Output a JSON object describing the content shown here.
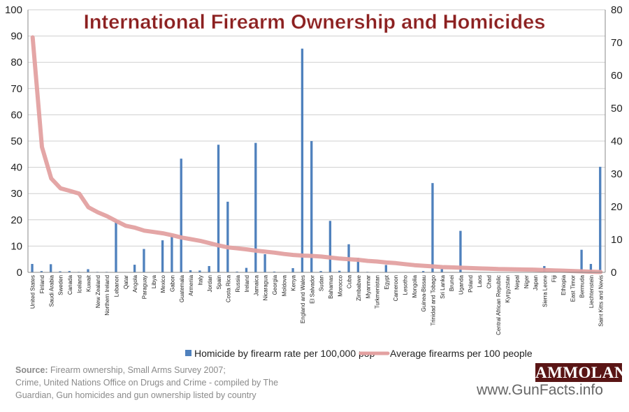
{
  "chart_data": {
    "type": "bar",
    "title": "International Firearm Ownership and Homicides",
    "left_axis": {
      "min": 0,
      "max": 100,
      "step": 10
    },
    "right_axis": {
      "min": 0,
      "max": 80,
      "step": 10
    },
    "grid": true,
    "legend": "bottom",
    "series": [
      {
        "name": "Homicide by firearm rate per 100,000 pop",
        "type": "bar",
        "axis": "left",
        "color": "#4f81bd"
      },
      {
        "name": "Average firearms per 100 people",
        "type": "line",
        "axis": "right",
        "color": "#e3a1a1"
      }
    ],
    "categories": [
      "United States",
      "Finland",
      "Saudi Arabia",
      "Sweden",
      "Canada",
      "Iceland",
      "Kuwait",
      "New Zealand",
      "Northern Ireland",
      "Lebanon",
      "Qatar",
      "Angola",
      "Paraguay",
      "Libya",
      "Mexico",
      "Gabon",
      "Guatemala",
      "Armenia",
      "Italy",
      "Jordan",
      "Spain",
      "Costa Rica",
      "Russia",
      "Ireland",
      "Jamaica",
      "Nicaragua",
      "Georgia",
      "Moldova",
      "Kenya",
      "England and Wales",
      "El Salvador",
      "Sudan",
      "Bahamas",
      "Morocco",
      "Cuba",
      "Zimbabwe",
      "Myanmar",
      "Turkmenistan",
      "Egypt",
      "Cameroon",
      "Lesotho",
      "Mongolia",
      "Guinea-Bissau",
      "Trinidad and Tobago",
      "Sri Lanka",
      "Brunei",
      "Uganda",
      "Poland",
      "Laos",
      "Chad",
      "Central African Republic",
      "Kyrgyzstan",
      "Nepal",
      "Niger",
      "Japan",
      "Sierra Leone",
      "Fiji",
      "Ethiopia",
      "East Timor",
      "Bermuda",
      "Liechtenstein",
      "Saint Kitts and Nevis"
    ],
    "homicide_rate": [
      3.2,
      0.5,
      3.1,
      0.4,
      0.5,
      0.2,
      1.2,
      0.2,
      0.2,
      19.4,
      0.1,
      2.9,
      8.9,
      0.1,
      12.2,
      14.0,
      43.3,
      0.8,
      0.7,
      2.4,
      48.6,
      26.9,
      0.3,
      1.7,
      49.3,
      6.9,
      0.3,
      0.1,
      1.6,
      85.2,
      50.0,
      0.5,
      19.6,
      0.6,
      10.7,
      5.5,
      0.2,
      0.1,
      2.8,
      0.1,
      0.1,
      0.1,
      0.5,
      34.0,
      1.2,
      0.1,
      15.8,
      0.1,
      0.1,
      0.1,
      0.1,
      0.1,
      0.1,
      0.1,
      0.1,
      2.4,
      0.1,
      0.1,
      0.1,
      8.6,
      3.2,
      40.2
    ],
    "firearms_per_100": [
      71.6,
      38.2,
      28.6,
      25.6,
      24.8,
      24.0,
      19.8,
      18.3,
      17.1,
      15.6,
      14.2,
      13.6,
      12.7,
      12.3,
      11.9,
      11.3,
      10.6,
      10.1,
      9.6,
      8.9,
      8.2,
      7.6,
      7.3,
      7.0,
      6.6,
      6.3,
      6.0,
      5.6,
      5.3,
      5.1,
      5.0,
      4.8,
      4.5,
      4.2,
      4.0,
      3.8,
      3.5,
      3.3,
      3.0,
      2.8,
      2.5,
      2.2,
      2.0,
      1.8,
      1.6,
      1.5,
      1.4,
      1.3,
      1.2,
      1.1,
      1.0,
      0.95,
      0.9,
      0.85,
      0.8,
      0.7,
      0.6,
      0.5,
      0.4,
      0.3,
      0.2,
      0.1
    ]
  },
  "footer": {
    "source_label": "Source:",
    "source_text_1": " Firearm ownership, Small Arms Survey 2007;",
    "source_text_2": "Crime, United Nations Office on Drugs and Crime - compiled by The Guardian, Gun homicides and gun ownership listed by country",
    "brand": "AMMOLAND",
    "site": "www.GunFacts.info"
  }
}
